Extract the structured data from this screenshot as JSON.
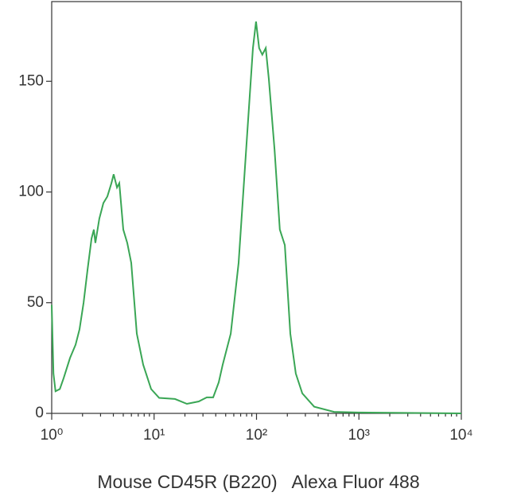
{
  "chart_data": {
    "type": "line",
    "xlabel": "Mouse CD45R (B220)   Alexa Fluor 488",
    "x": [
      1,
      1.04,
      1.09,
      1.2,
      1.31,
      1.51,
      1.71,
      1.87,
      2.05,
      2.24,
      2.45,
      2.58,
      2.67,
      2.92,
      3.2,
      3.5,
      3.83,
      4.03,
      4.34,
      4.57,
      5.0,
      5.47,
      5.98,
      6.78,
      7.82,
      9.35,
      11.2,
      16.0,
      20.9,
      27.3,
      32.7,
      37.7,
      42.8,
      46.8,
      56.0,
      66.9,
      80,
      92.3,
      99,
      106,
      114,
      123,
      132,
      150,
      169,
      189,
      214,
      242,
      280,
      366,
      572,
      977,
      10000
    ],
    "series": [
      {
        "color": "#3aa655",
        "values": [
          49,
          18,
          10,
          11,
          16,
          25,
          31,
          38,
          50,
          65,
          79,
          83,
          77,
          88,
          95,
          98,
          104,
          108,
          102,
          104,
          83,
          77,
          68,
          36,
          22,
          11,
          7,
          6.5,
          4.3,
          5.4,
          7.2,
          7.2,
          14,
          22,
          36,
          68,
          122,
          165,
          177,
          165,
          162,
          165,
          151,
          119,
          83,
          76,
          36,
          18,
          9,
          3,
          0.7,
          0.4,
          0
        ]
      }
    ],
    "xlim": [
      1,
      10000
    ],
    "xscale": "log",
    "xticks": [
      {
        "value": 1,
        "label": "10⁰"
      },
      {
        "value": 10,
        "label": "10¹"
      },
      {
        "value": 100,
        "label": "10²"
      },
      {
        "value": 1000,
        "label": "10³"
      },
      {
        "value": 10000,
        "label": "10⁴"
      }
    ],
    "ylim": [
      0,
      186
    ],
    "yticks": [
      0,
      50,
      100,
      150
    ]
  }
}
